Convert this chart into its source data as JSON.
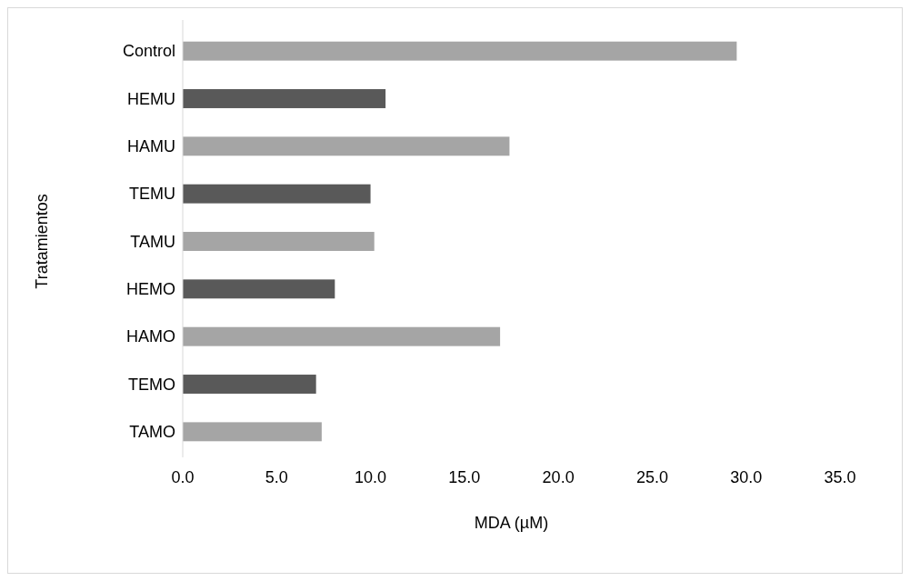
{
  "chart_data": {
    "type": "bar",
    "orientation": "horizontal",
    "xlabel": "MDA (µM)",
    "ylabel": "Tratamientos",
    "categories": [
      "Control",
      "HEMU",
      "HAMU",
      "TEMU",
      "TAMU",
      "HEMO",
      "HAMO",
      "TEMO",
      "TAMO"
    ],
    "values": [
      29.5,
      10.8,
      17.4,
      10.0,
      10.2,
      8.1,
      16.9,
      7.1,
      7.4
    ],
    "colors": [
      "#a5a5a5",
      "#595959",
      "#a5a5a5",
      "#595959",
      "#a5a5a5",
      "#595959",
      "#a5a5a5",
      "#595959",
      "#a5a5a5"
    ],
    "xlim": [
      0,
      35
    ],
    "xticks": [
      {
        "value": 0,
        "label": "0.0"
      },
      {
        "value": 5,
        "label": "5.0"
      },
      {
        "value": 10,
        "label": "10.0"
      },
      {
        "value": 15,
        "label": "15.0"
      },
      {
        "value": 20,
        "label": "20.0"
      },
      {
        "value": 25,
        "label": "25.0"
      },
      {
        "value": 30,
        "label": "30.0"
      },
      {
        "value": 35,
        "label": "35.0"
      }
    ],
    "grid": false
  }
}
